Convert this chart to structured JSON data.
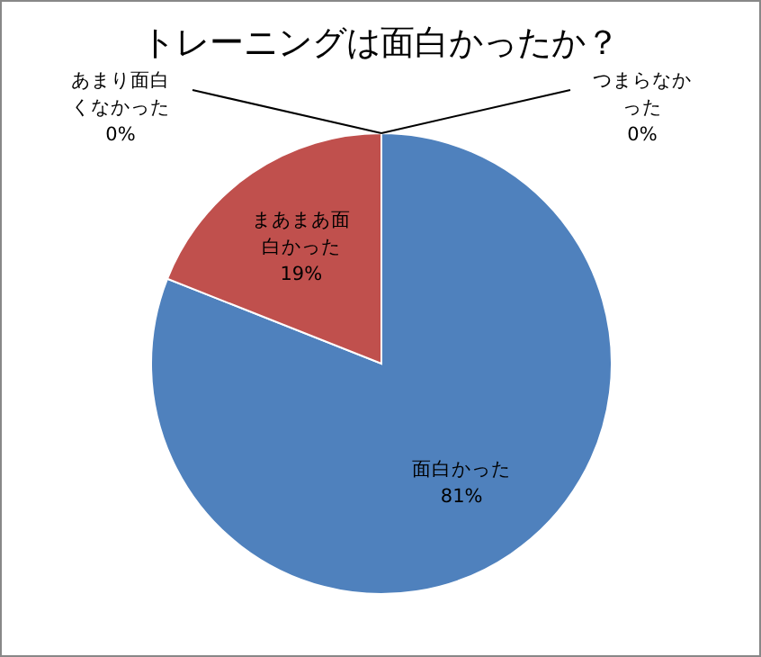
{
  "chart_data": {
    "type": "pie",
    "title": "トレーニングは面白かったか？",
    "categories": [
      "面白かった",
      "まあまあ面白かった",
      "あまり面白くなかった",
      "つまらなかった"
    ],
    "values": [
      81,
      19,
      0,
      0
    ],
    "value_labels": [
      "81%",
      "19%",
      "0%",
      "0%"
    ],
    "colors": [
      "#4f81bd",
      "#c0504d",
      "#9bbb59",
      "#8064a2"
    ]
  }
}
